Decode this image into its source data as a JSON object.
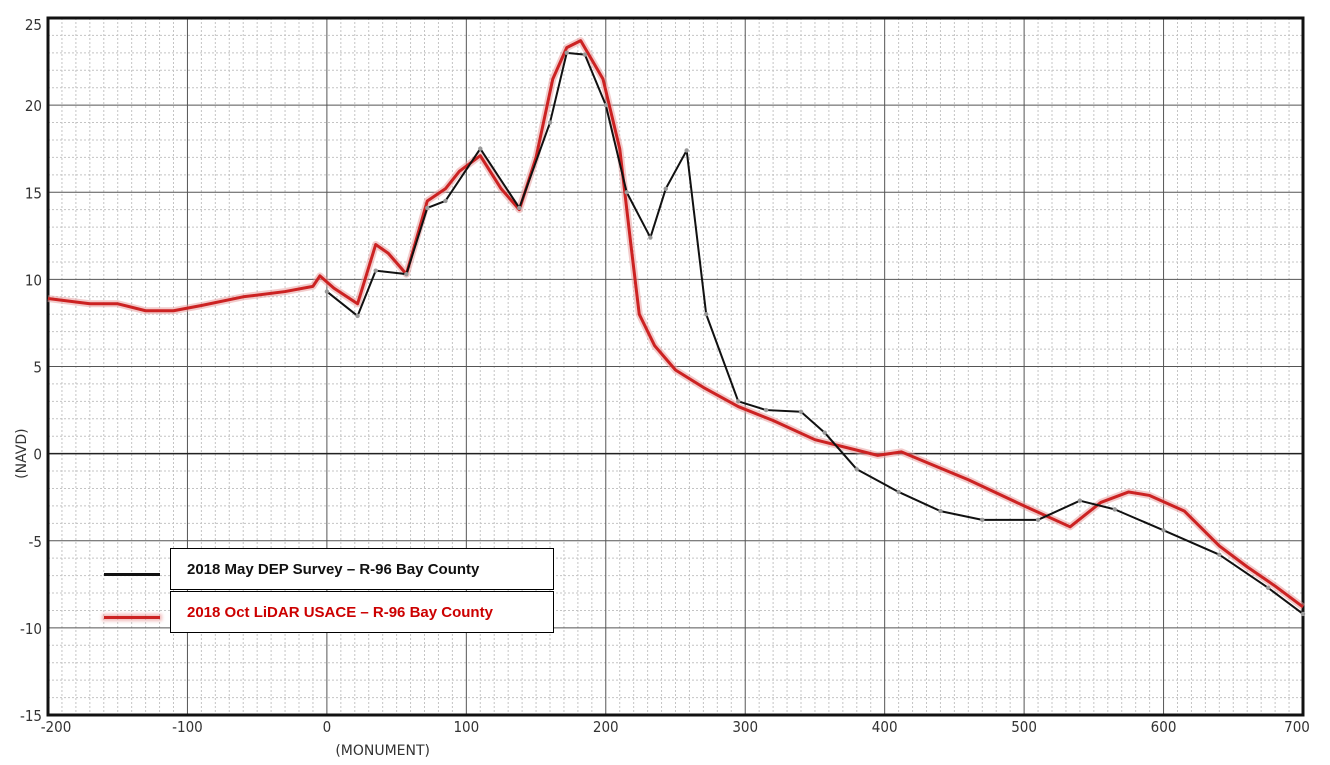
{
  "chart_data": {
    "type": "line",
    "xlabel": "(MONUMENT)",
    "ylabel": "(NAVD)",
    "xlim": [
      -200,
      700
    ],
    "ylim": [
      -15,
      25
    ],
    "x_ticks": [
      -200,
      -100,
      0,
      100,
      200,
      300,
      400,
      500,
      600,
      700
    ],
    "y_ticks": [
      -15,
      -10,
      -5,
      0,
      5,
      10,
      15,
      20,
      25
    ],
    "x_tick_labels": [
      "-200",
      "-100",
      "0",
      "100",
      "200",
      "300",
      "400",
      "500",
      "600",
      "700"
    ],
    "y_tick_labels": [
      "-15",
      "-10",
      "-5",
      "0",
      "5",
      "10",
      "15",
      "20",
      "25"
    ],
    "grid": true,
    "legend_position": "bottom-left",
    "series": [
      {
        "name": "2018 May DEP Survey – R-96 Bay County",
        "color": "#111111",
        "points": [
          [
            0,
            9.3
          ],
          [
            22,
            7.9
          ],
          [
            35,
            10.5
          ],
          [
            57,
            10.3
          ],
          [
            72,
            14.1
          ],
          [
            85,
            14.5
          ],
          [
            110,
            17.5
          ],
          [
            138,
            14.1
          ],
          [
            160,
            19.0
          ],
          [
            172,
            23.0
          ],
          [
            185,
            22.9
          ],
          [
            200,
            20.0
          ],
          [
            215,
            15.0
          ],
          [
            232,
            12.4
          ],
          [
            243,
            15.2
          ],
          [
            258,
            17.4
          ],
          [
            272,
            8.0
          ],
          [
            295,
            3.0
          ],
          [
            315,
            2.5
          ],
          [
            340,
            2.4
          ],
          [
            357,
            1.2
          ],
          [
            380,
            -0.9
          ],
          [
            410,
            -2.2
          ],
          [
            440,
            -3.3
          ],
          [
            470,
            -3.8
          ],
          [
            510,
            -3.8
          ],
          [
            540,
            -2.7
          ],
          [
            565,
            -3.2
          ],
          [
            600,
            -4.4
          ],
          [
            640,
            -5.8
          ],
          [
            675,
            -7.7
          ],
          [
            700,
            -9.2
          ]
        ]
      },
      {
        "name": "2018 Oct LiDAR USACE – R-96 Bay County",
        "color": "#cc2222",
        "points": [
          [
            -200,
            8.9
          ],
          [
            -170,
            8.6
          ],
          [
            -150,
            8.6
          ],
          [
            -130,
            8.2
          ],
          [
            -110,
            8.2
          ],
          [
            -90,
            8.5
          ],
          [
            -60,
            9.0
          ],
          [
            -30,
            9.3
          ],
          [
            -10,
            9.6
          ],
          [
            -5,
            10.2
          ],
          [
            5,
            9.5
          ],
          [
            22,
            8.6
          ],
          [
            35,
            12.0
          ],
          [
            44,
            11.5
          ],
          [
            57,
            10.3
          ],
          [
            72,
            14.5
          ],
          [
            85,
            15.2
          ],
          [
            95,
            16.2
          ],
          [
            110,
            17.1
          ],
          [
            125,
            15.2
          ],
          [
            138,
            14.0
          ],
          [
            150,
            17.0
          ],
          [
            162,
            21.5
          ],
          [
            172,
            23.3
          ],
          [
            182,
            23.7
          ],
          [
            198,
            21.5
          ],
          [
            210,
            17.5
          ],
          [
            218,
            12.0
          ],
          [
            224,
            8.0
          ],
          [
            235,
            6.2
          ],
          [
            250,
            4.8
          ],
          [
            270,
            3.8
          ],
          [
            295,
            2.7
          ],
          [
            320,
            1.9
          ],
          [
            350,
            0.8
          ],
          [
            380,
            0.2
          ],
          [
            395,
            -0.1
          ],
          [
            412,
            0.1
          ],
          [
            430,
            -0.5
          ],
          [
            460,
            -1.5
          ],
          [
            500,
            -3.0
          ],
          [
            533,
            -4.2
          ],
          [
            555,
            -2.8
          ],
          [
            575,
            -2.2
          ],
          [
            590,
            -2.4
          ],
          [
            615,
            -3.3
          ],
          [
            640,
            -5.3
          ],
          [
            660,
            -6.5
          ],
          [
            680,
            -7.6
          ],
          [
            700,
            -8.8
          ]
        ]
      }
    ]
  }
}
